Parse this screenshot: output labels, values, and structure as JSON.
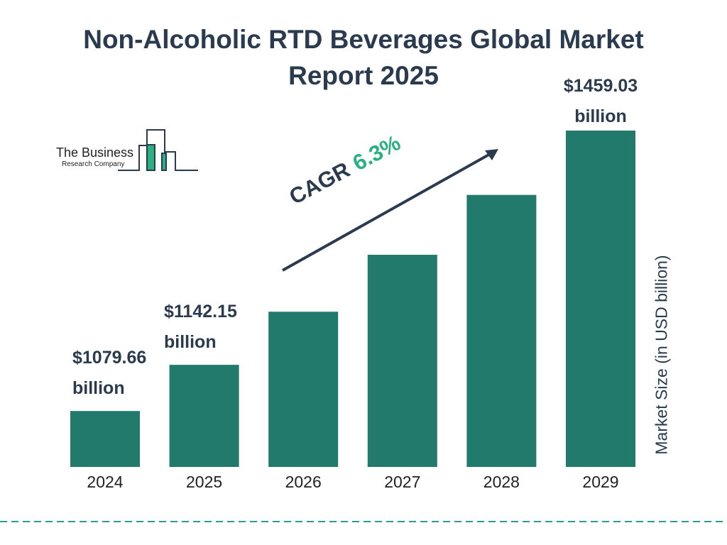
{
  "chart_data": {
    "type": "bar",
    "title": "Non-Alcoholic RTD Beverages Global Market Report 2025",
    "y_label": "Market Size (in USD billion)",
    "categories": [
      "2024",
      "2025",
      "2026",
      "2027",
      "2028",
      "2029"
    ],
    "values": [
      1079.66,
      1142.15,
      1214,
      1291,
      1372,
      1459.03
    ],
    "value_labels": [
      "$1079.66 billion",
      "$1142.15 billion",
      null,
      null,
      null,
      "$1459.03 billion"
    ],
    "color": "#217a6b",
    "ylim": [
      1004,
      1459.03
    ],
    "cagr_label": "CAGR",
    "cagr_value": "6.3%",
    "logo": {
      "line1": "The Business",
      "line2": "Research Company"
    }
  }
}
